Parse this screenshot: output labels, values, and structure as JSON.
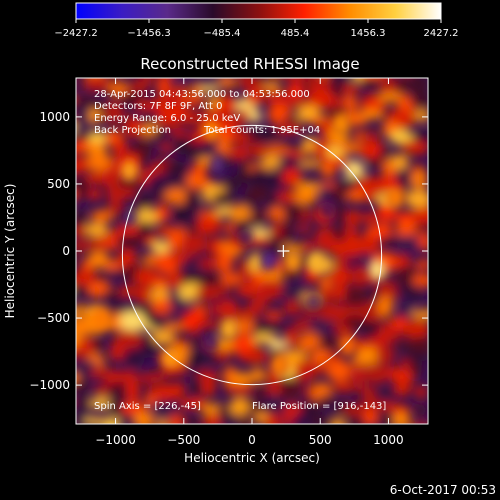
{
  "chart_data": {
    "type": "heatmap",
    "title": "Reconstructed RHESSI Image",
    "xlabel": "Heliocentric X (arcsec)",
    "ylabel": "Heliocentric Y (arcsec)",
    "xlim": [
      -1290,
      1290
    ],
    "ylim": [
      -1290,
      1290
    ],
    "x_ticks": [
      -1000,
      -500,
      0,
      500,
      1000
    ],
    "y_ticks": [
      -1000,
      -500,
      0,
      500,
      1000
    ],
    "x_tick_labels": [
      "−1000",
      "−500",
      "0",
      "500",
      "1000"
    ],
    "y_tick_labels": [
      "−1000",
      "−500",
      "0",
      "500",
      "1000"
    ],
    "colorbar": {
      "range": [
        -2427.2,
        2427.2
      ],
      "ticks": [
        -2427.2,
        -1456.3,
        -485.4,
        485.4,
        1456.3,
        2427.2
      ],
      "tick_labels": [
        "−2427.2",
        "−1456.3",
        "−485.4",
        "485.4",
        "1456.3",
        "2427.2"
      ],
      "colors": [
        "#0000ff",
        "#3a1cc4",
        "#5a2a8a",
        "#2a0a2a",
        "#8a1010",
        "#ff2000",
        "#ff8c00",
        "#ffd040",
        "#ffffff"
      ]
    },
    "solar_limb": {
      "center": [
        0,
        -30
      ],
      "radius_arcsec": 950
    },
    "marker": {
      "x": 230,
      "y": 0,
      "symbol": "+"
    },
    "hot_spots": [
      {
        "x": 920,
        "y": -140,
        "value": 2000
      },
      {
        "x": 470,
        "y": -80,
        "value": 1600
      },
      {
        "x": -170,
        "y": -580,
        "value": 1500
      },
      {
        "x": -900,
        "y": 600,
        "value": 1400
      },
      {
        "x": 300,
        "y": -80,
        "value": 1300
      },
      {
        "x": -600,
        "y": -800,
        "value": 1300
      },
      {
        "x": 650,
        "y": 950,
        "value": 1200
      },
      {
        "x": -300,
        "y": 900,
        "value": 1200
      },
      {
        "x": 1050,
        "y": 400,
        "value": 1100
      },
      {
        "x": -1100,
        "y": -500,
        "value": 1100
      },
      {
        "x": 200,
        "y": -850,
        "value": 1100
      },
      {
        "x": 700,
        "y": -700,
        "value": 1000
      }
    ],
    "cold_spots": [
      {
        "x": 130,
        "y": -80,
        "value": -1400
      },
      {
        "x": -250,
        "y": 650,
        "value": -1200
      },
      {
        "x": -900,
        "y": 250,
        "value": -1100
      },
      {
        "x": 450,
        "y": -380,
        "value": -1000
      },
      {
        "x": -300,
        "y": -680,
        "value": -1000
      },
      {
        "x": 550,
        "y": 300,
        "value": -900
      },
      {
        "x": -50,
        "y": 100,
        "value": -900
      }
    ],
    "annotations": {
      "time_range": "28-Apr-2015 04:43:56.000 to 04:53:56.000",
      "detectors": "Detectors: 7F 8F 9F, Att 0",
      "energy_range": "Energy Range: 6.0 - 25.0 keV",
      "method": "Back Projection",
      "total_counts": "Total counts: 1.95E+04",
      "spin_axis": "Spin Axis = [226,-45]",
      "flare_position": "Flare Position = [916,-143]"
    }
  },
  "footer": {
    "timestamp": "6-Oct-2017 00:53"
  }
}
